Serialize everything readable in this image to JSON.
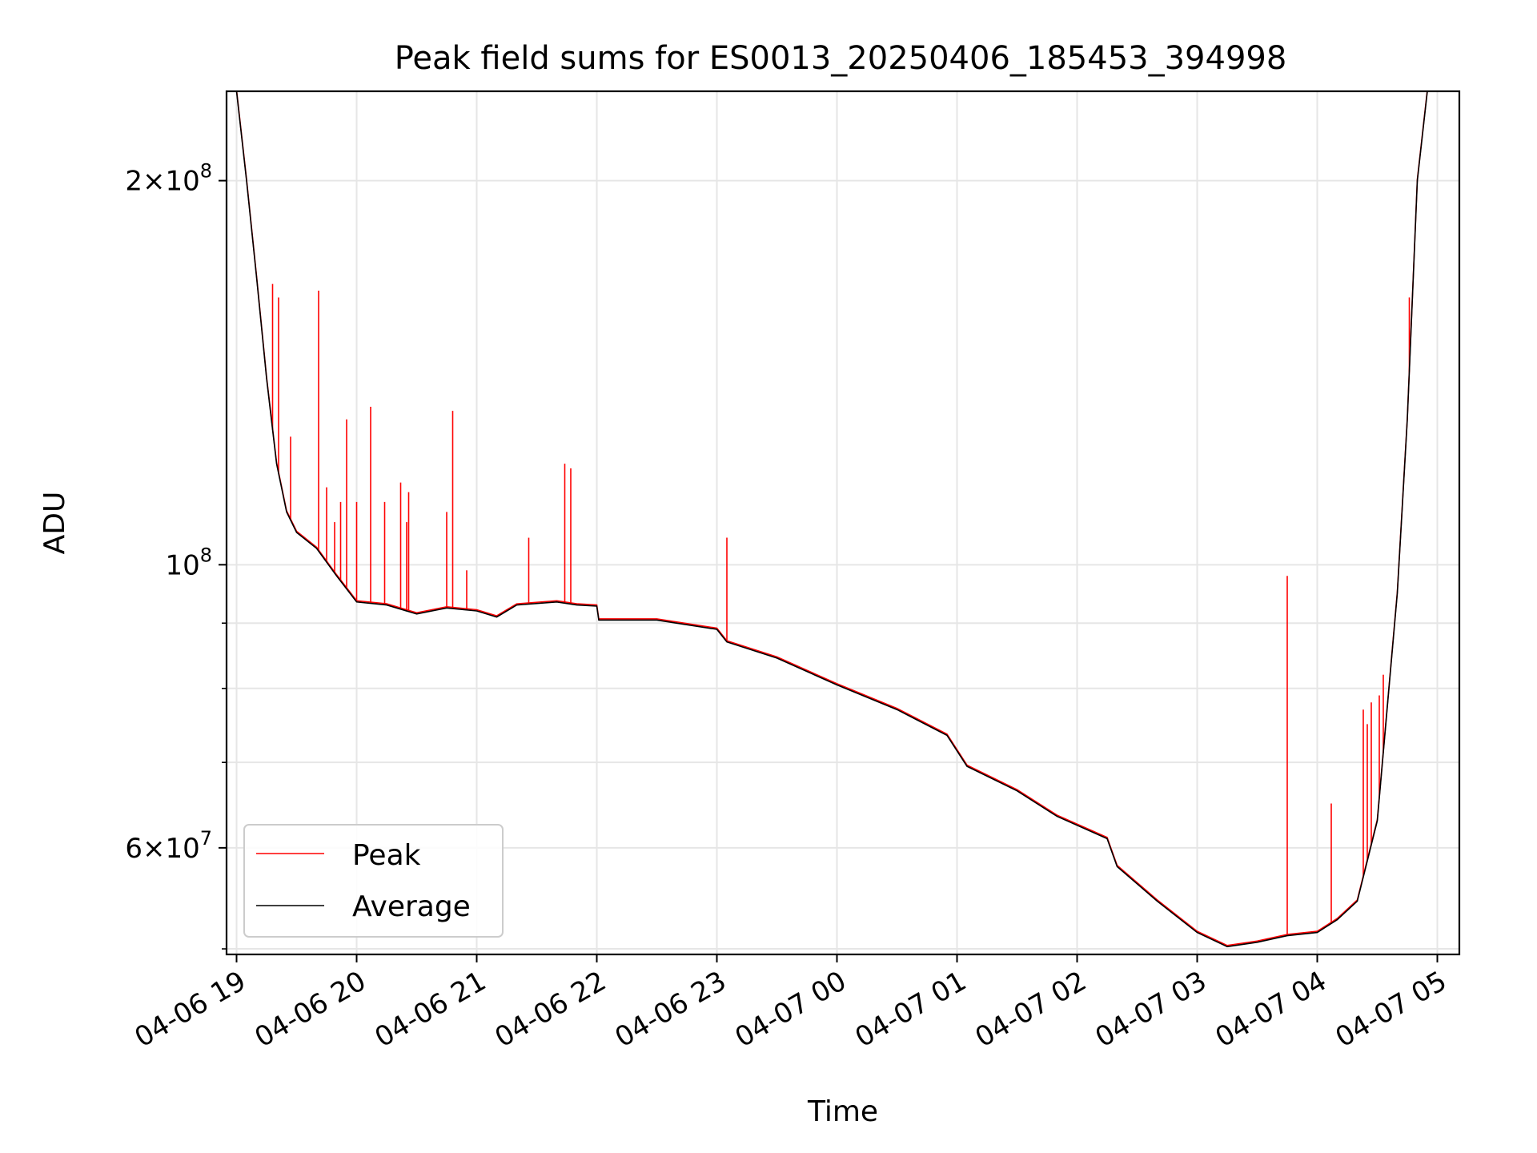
{
  "chart_data": {
    "type": "line",
    "title": "Peak field sums for ES0013_20250406_185453_394998",
    "xlabel": "Time",
    "ylabel": "ADU",
    "yscale": "log",
    "ylim": [
      49500000,
      235000000
    ],
    "xlim": [
      "2025-04-06 18:55",
      "2025-04-07 05:11"
    ],
    "grid": true,
    "legend_position": "lower left",
    "x_ticks": [
      {
        "t": "2025-04-06 19:00",
        "label": "04-06 19"
      },
      {
        "t": "2025-04-06 20:00",
        "label": "04-06 20"
      },
      {
        "t": "2025-04-06 21:00",
        "label": "04-06 21"
      },
      {
        "t": "2025-04-06 22:00",
        "label": "04-06 22"
      },
      {
        "t": "2025-04-06 23:00",
        "label": "04-06 23"
      },
      {
        "t": "2025-04-07 00:00",
        "label": "04-07 00"
      },
      {
        "t": "2025-04-07 01:00",
        "label": "04-07 01"
      },
      {
        "t": "2025-04-07 02:00",
        "label": "04-07 02"
      },
      {
        "t": "2025-04-07 03:00",
        "label": "04-07 03"
      },
      {
        "t": "2025-04-07 04:00",
        "label": "04-07 04"
      },
      {
        "t": "2025-04-07 05:00",
        "label": "04-07 05"
      }
    ],
    "y_major_ticks": [
      {
        "v": 200000000,
        "mant": "2",
        "exp": "8"
      },
      {
        "v": 100000000,
        "mant": "",
        "exp": "8"
      },
      {
        "v": 60000000,
        "mant": "6",
        "exp": "7"
      }
    ],
    "y_minor_ticks": [
      50000000,
      70000000,
      80000000,
      90000000
    ],
    "series": [
      {
        "name": "Average",
        "color": "#000000",
        "points": [
          [
            "2025-04-06 18:55",
            235000000
          ],
          [
            "2025-04-06 19:00",
            235000000
          ],
          [
            "2025-04-06 19:05",
            200000000
          ],
          [
            "2025-04-06 19:10",
            168000000
          ],
          [
            "2025-04-06 19:15",
            140000000
          ],
          [
            "2025-04-06 19:20",
            120000000
          ],
          [
            "2025-04-06 19:25",
            110000000
          ],
          [
            "2025-04-06 19:30",
            106000000
          ],
          [
            "2025-04-06 19:40",
            103000000
          ],
          [
            "2025-04-06 19:50",
            98000000
          ],
          [
            "2025-04-06 20:00",
            93500000
          ],
          [
            "2025-04-06 20:15",
            93000000
          ],
          [
            "2025-04-06 20:30",
            91500000
          ],
          [
            "2025-04-06 20:45",
            92500000
          ],
          [
            "2025-04-06 21:00",
            92000000
          ],
          [
            "2025-04-06 21:10",
            91000000
          ],
          [
            "2025-04-06 21:20",
            93000000
          ],
          [
            "2025-04-06 21:40",
            93500000
          ],
          [
            "2025-04-06 21:50",
            93000000
          ],
          [
            "2025-04-06 22:00",
            92800000
          ],
          [
            "2025-04-06 22:01",
            90500000
          ],
          [
            "2025-04-06 22:30",
            90500000
          ],
          [
            "2025-04-06 23:00",
            89000000
          ],
          [
            "2025-04-06 23:05",
            87000000
          ],
          [
            "2025-04-06 23:30",
            84500000
          ],
          [
            "2025-04-07 00:00",
            80500000
          ],
          [
            "2025-04-07 00:30",
            77000000
          ],
          [
            "2025-04-07 00:55",
            73500000
          ],
          [
            "2025-04-07 01:05",
            69500000
          ],
          [
            "2025-04-07 01:30",
            66500000
          ],
          [
            "2025-04-07 01:50",
            63500000
          ],
          [
            "2025-04-07 02:15",
            61000000
          ],
          [
            "2025-04-07 02:20",
            58000000
          ],
          [
            "2025-04-07 02:40",
            54500000
          ],
          [
            "2025-04-07 03:00",
            51500000
          ],
          [
            "2025-04-07 03:15",
            50200000
          ],
          [
            "2025-04-07 03:30",
            50600000
          ],
          [
            "2025-04-07 03:45",
            51200000
          ],
          [
            "2025-04-07 04:00",
            51500000
          ],
          [
            "2025-04-07 04:10",
            52700000
          ],
          [
            "2025-04-07 04:20",
            54500000
          ],
          [
            "2025-04-07 04:30",
            63000000
          ],
          [
            "2025-04-07 04:40",
            95000000
          ],
          [
            "2025-04-07 04:45",
            130000000
          ],
          [
            "2025-04-07 04:50",
            200000000
          ],
          [
            "2025-04-07 04:55",
            235000000
          ],
          [
            "2025-04-07 05:11",
            235000000
          ]
        ]
      },
      {
        "name": "Peak",
        "color": "#ff0000",
        "spikes": [
          [
            "2025-04-06 19:18",
            166000000
          ],
          [
            "2025-04-06 19:21",
            162000000
          ],
          [
            "2025-04-06 19:27",
            126000000
          ],
          [
            "2025-04-06 19:41",
            164000000
          ],
          [
            "2025-04-06 19:45",
            115000000
          ],
          [
            "2025-04-06 19:49",
            108000000
          ],
          [
            "2025-04-06 19:52",
            112000000
          ],
          [
            "2025-04-06 19:55",
            130000000
          ],
          [
            "2025-04-06 20:00",
            112000000
          ],
          [
            "2025-04-06 20:07",
            133000000
          ],
          [
            "2025-04-06 20:14",
            112000000
          ],
          [
            "2025-04-06 20:22",
            116000000
          ],
          [
            "2025-04-06 20:25",
            108000000
          ],
          [
            "2025-04-06 20:26",
            114000000
          ],
          [
            "2025-04-06 20:45",
            110000000
          ],
          [
            "2025-04-06 20:48",
            132000000
          ],
          [
            "2025-04-06 20:55",
            99000000
          ],
          [
            "2025-04-06 21:26",
            105000000
          ],
          [
            "2025-04-06 21:44",
            120000000
          ],
          [
            "2025-04-06 21:47",
            119000000
          ],
          [
            "2025-04-06 23:05",
            105000000
          ],
          [
            "2025-04-07 03:45",
            98000000
          ],
          [
            "2025-04-07 04:07",
            65000000
          ],
          [
            "2025-04-07 04:23",
            77000000
          ],
          [
            "2025-04-07 04:25",
            75000000
          ],
          [
            "2025-04-07 04:27",
            78000000
          ],
          [
            "2025-04-07 04:31",
            79000000
          ],
          [
            "2025-04-07 04:33",
            82000000
          ],
          [
            "2025-04-07 04:46",
            162000000
          ]
        ]
      }
    ]
  }
}
